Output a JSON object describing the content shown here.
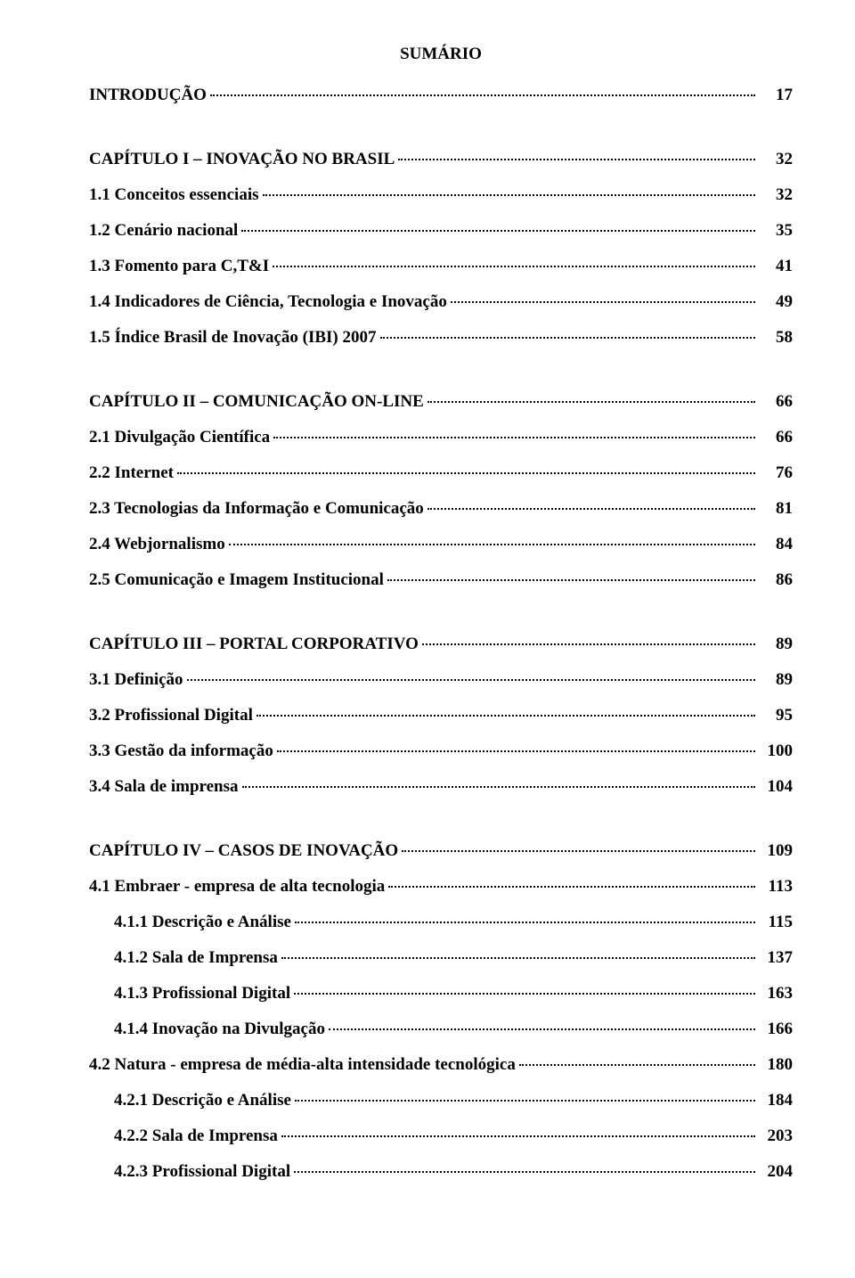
{
  "title": "SUMÁRIO",
  "text_color": "#000000",
  "background_color": "#ffffff",
  "font_family": "Times New Roman",
  "base_fontsize_pt": 14,
  "entries": [
    {
      "label": "INTRODUÇÃO",
      "page": "17",
      "indent": 0,
      "gap_after": true
    },
    {
      "label": "CAPÍTULO I – INOVAÇÃO NO BRASIL",
      "page": "32",
      "indent": 0
    },
    {
      "label": "1.1 Conceitos essenciais",
      "page": "32",
      "indent": 0
    },
    {
      "label": "1.2 Cenário nacional",
      "page": "35",
      "indent": 0
    },
    {
      "label": "1.3 Fomento para C,T&I",
      "page": "41",
      "indent": 0
    },
    {
      "label": "1.4 Indicadores de Ciência, Tecnologia e Inovação",
      "page": "49",
      "indent": 0
    },
    {
      "label": "1.5 Índice Brasil de Inovação (IBI) 2007",
      "page": "58",
      "indent": 0,
      "gap_after": true
    },
    {
      "label": "CAPÍTULO II – COMUNICAÇÃO ON-LINE",
      "page": "66",
      "indent": 0
    },
    {
      "label": "2.1 Divulgação Científica",
      "page": "66",
      "indent": 0
    },
    {
      "label": "2.2 Internet",
      "page": "76",
      "indent": 0
    },
    {
      "label": "2.3 Tecnologias da Informação e Comunicação",
      "page": "81",
      "indent": 0
    },
    {
      "label": "2.4 Webjornalismo",
      "page": "84",
      "indent": 0
    },
    {
      "label": "2.5 Comunicação e Imagem Institucional",
      "page": "86",
      "indent": 0,
      "gap_after": true
    },
    {
      "label": "CAPÍTULO III – PORTAL CORPORATIVO",
      "page": "89",
      "indent": 0
    },
    {
      "label": "3.1 Definição",
      "page": "89",
      "indent": 0
    },
    {
      "label": "3.2 Profissional Digital",
      "page": "95",
      "indent": 0
    },
    {
      "label": "3.3 Gestão da informação",
      "page": "100",
      "indent": 0
    },
    {
      "label": "3.4 Sala de imprensa",
      "page": "104",
      "indent": 0,
      "gap_after": true
    },
    {
      "label": "CAPÍTULO IV – CASOS DE INOVAÇÃO",
      "page": "109",
      "indent": 0
    },
    {
      "label": "4.1 Embraer - empresa de alta tecnologia",
      "page": "113",
      "indent": 0
    },
    {
      "label": "4.1.1 Descrição e Análise",
      "page": "115",
      "indent": 1
    },
    {
      "label": "4.1.2 Sala de Imprensa",
      "page": "137",
      "indent": 1
    },
    {
      "label": "4.1.3 Profissional Digital",
      "page": "163",
      "indent": 1
    },
    {
      "label": "4.1.4 Inovação na Divulgação",
      "page": "166",
      "indent": 1
    },
    {
      "label": "4.2 Natura - empresa de média-alta intensidade tecnológica",
      "page": "180",
      "indent": 0
    },
    {
      "label": "4.2.1 Descrição e Análise",
      "page": "184",
      "indent": 1
    },
    {
      "label": "4.2.2 Sala de Imprensa",
      "page": "203",
      "indent": 1
    },
    {
      "label": "4.2.3 Profissional Digital",
      "page": "204",
      "indent": 1
    }
  ]
}
